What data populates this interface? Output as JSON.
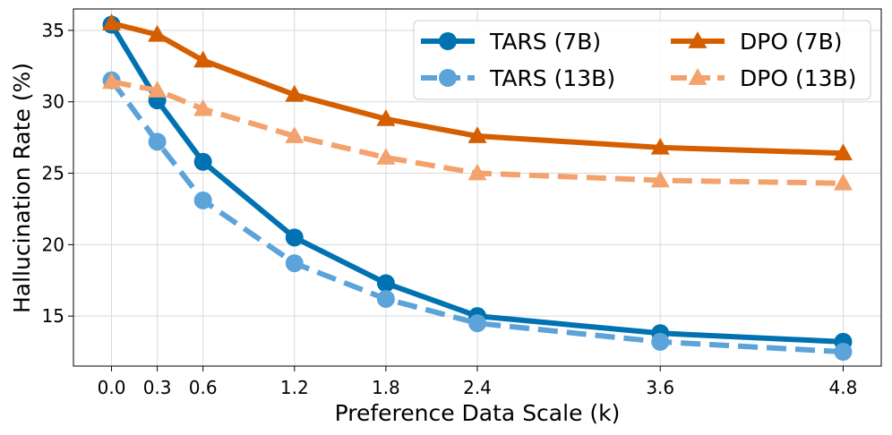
{
  "chart_data": {
    "type": "line",
    "title": "",
    "xlabel": "Preference Data Scale (k)",
    "ylabel": "Hallucination Rate (%)",
    "x": [
      0.0,
      0.3,
      0.6,
      1.2,
      1.8,
      2.4,
      3.6,
      4.8
    ],
    "x_tick_labels": [
      "0.0",
      "0.3",
      "0.6",
      "1.2",
      "1.8",
      "2.4",
      "3.6",
      "4.8"
    ],
    "y_ticks": [
      15,
      20,
      25,
      30,
      35
    ],
    "y_tick_labels": [
      "15",
      "20",
      "25",
      "30",
      "35"
    ],
    "xlim": [
      -0.25,
      5.05
    ],
    "ylim": [
      11.5,
      36.5
    ],
    "grid": true,
    "legend_position": "top-right",
    "series": [
      {
        "name": "TARS (7B)",
        "color": "#0072b2",
        "dash": "solid",
        "marker": "circle",
        "values": [
          35.4,
          30.1,
          25.8,
          20.5,
          17.3,
          15.0,
          13.8,
          13.2
        ]
      },
      {
        "name": "TARS (13B)",
        "color": "#5ba3d9",
        "dash": "dashed",
        "marker": "circle",
        "values": [
          31.5,
          27.2,
          23.1,
          18.7,
          16.2,
          14.5,
          13.2,
          12.5
        ]
      },
      {
        "name": "DPO (7B)",
        "color": "#d55e00",
        "dash": "solid",
        "marker": "triangle",
        "values": [
          35.5,
          34.7,
          32.9,
          30.5,
          28.8,
          27.6,
          26.8,
          26.4
        ]
      },
      {
        "name": "DPO (13B)",
        "color": "#f4a26d",
        "dash": "dashed",
        "marker": "triangle",
        "values": [
          31.4,
          30.8,
          29.5,
          27.6,
          26.1,
          25.0,
          24.5,
          24.3
        ]
      }
    ]
  }
}
